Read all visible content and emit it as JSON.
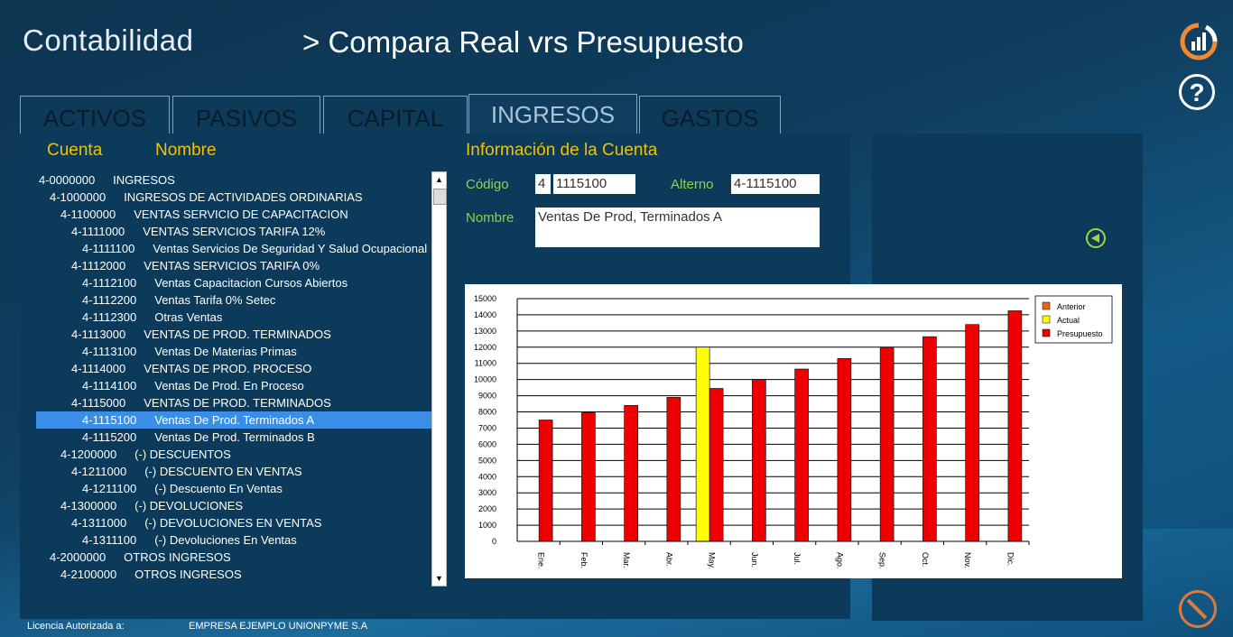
{
  "header": {
    "app_title": "Contabilidad",
    "page_title": "> Compara Real vrs Presupuesto"
  },
  "tabs": [
    {
      "label": "ACTIVOS"
    },
    {
      "label": "PASIVOS"
    },
    {
      "label": "CAPITAL"
    },
    {
      "label": "INGRESOS",
      "active": true
    },
    {
      "label": "GASTOS"
    }
  ],
  "tree": {
    "col_cuenta": "Cuenta",
    "col_nombre": "Nombre",
    "rows": [
      {
        "code": "4-0000000",
        "name": "INGRESOS",
        "level": 0
      },
      {
        "code": "4-1000000",
        "name": "INGRESOS DE ACTIVIDADES ORDINARIAS",
        "level": 1
      },
      {
        "code": "4-1100000",
        "name": "VENTAS SERVICIO DE CAPACITACION",
        "level": 2
      },
      {
        "code": "4-1111000",
        "name": "VENTAS  SERVICIOS TARIFA 12%",
        "level": 3
      },
      {
        "code": "4-1111100",
        "name": "Ventas Servicios De Seguridad Y Salud Ocupacional",
        "level": 4
      },
      {
        "code": "4-1112000",
        "name": "VENTAS SERVICIOS TARIFA 0%",
        "level": 3
      },
      {
        "code": "4-1112100",
        "name": "Ventas Capacitacion Cursos Abiertos",
        "level": 4
      },
      {
        "code": "4-1112200",
        "name": "Ventas Tarifa 0% Setec",
        "level": 4
      },
      {
        "code": "4-1112300",
        "name": "Otras Ventas",
        "level": 4
      },
      {
        "code": "4-1113000",
        "name": "VENTAS DE PROD. TERMINADOS",
        "level": 3
      },
      {
        "code": "4-1113100",
        "name": "Ventas De Materias Primas",
        "level": 4
      },
      {
        "code": "4-1114000",
        "name": "VENTAS DE PROD. PROCESO",
        "level": 3
      },
      {
        "code": "4-1114100",
        "name": "Ventas De Prod. En Proceso",
        "level": 4
      },
      {
        "code": "4-1115000",
        "name": "VENTAS DE PROD. TERMINADOS",
        "level": 3
      },
      {
        "code": "4-1115100",
        "name": "Ventas De Prod. Terminados A",
        "level": 4,
        "selected": true
      },
      {
        "code": "4-1115200",
        "name": "Ventas De Prod. Terminados B",
        "level": 4
      },
      {
        "code": "4-1200000",
        "name": "(-) DESCUENTOS",
        "level": 2
      },
      {
        "code": "4-1211000",
        "name": "(-) DESCUENTO EN VENTAS",
        "level": 3
      },
      {
        "code": "4-1211100",
        "name": "(-) Descuento En Ventas",
        "level": 4
      },
      {
        "code": "4-1300000",
        "name": "(-) DEVOLUCIONES",
        "level": 2
      },
      {
        "code": "4-1311000",
        "name": "(-) DEVOLUCIONES EN VENTAS",
        "level": 3
      },
      {
        "code": "4-1311100",
        "name": "(-) Devoluciones En Ventas",
        "level": 4
      },
      {
        "code": "4-2000000",
        "name": "OTROS INGRESOS",
        "level": 1
      },
      {
        "code": "4-2100000",
        "name": "OTROS INGRESOS",
        "level": 2
      }
    ]
  },
  "info": {
    "title": "Información de la Cuenta",
    "codigo_label": "Código",
    "codigo_prefix": "4",
    "codigo_value": "1115100",
    "alterno_label": "Alterno",
    "alterno_value": "4-1115100",
    "nombre_label": "Nombre",
    "nombre_value": "Ventas De Prod, Terminados A"
  },
  "footer": {
    "license_label": "Licencia Autorizada a:",
    "company": "EMPRESA EJEMPLO UNIONPYME S.A"
  },
  "colors": {
    "anterior": "#e8641e",
    "actual": "#ffff00",
    "presupuesto": "#ee0000",
    "accent": "#f2c200",
    "label_green": "#8fd14f"
  },
  "icons": [
    "app-logo-icon",
    "help-icon",
    "back-arrow-icon",
    "cancel-icon"
  ],
  "chart_data": {
    "type": "bar",
    "categories": [
      "Ene.",
      "Feb.",
      "Mar.",
      "Abr.",
      "May.",
      "Jun.",
      "Jul.",
      "Ago.",
      "Sep.",
      "Oct.",
      "Nov.",
      "Dic."
    ],
    "ylim": [
      0,
      15000
    ],
    "yticks": [
      0,
      1000,
      2000,
      3000,
      4000,
      5000,
      6000,
      7000,
      8000,
      9000,
      10000,
      11000,
      12000,
      13000,
      14000,
      15000
    ],
    "legend_position": "top-right",
    "grid": true,
    "series": [
      {
        "name": "Anterior",
        "color": "#e8641e",
        "values": [
          null,
          null,
          null,
          null,
          null,
          null,
          null,
          null,
          null,
          null,
          null,
          null
        ]
      },
      {
        "name": "Actual",
        "color": "#ffff00",
        "values": [
          null,
          null,
          null,
          null,
          12000,
          null,
          null,
          null,
          null,
          null,
          null,
          null
        ]
      },
      {
        "name": "Presupuesto",
        "color": "#ee0000",
        "values": [
          7500,
          7950,
          8400,
          8900,
          9450,
          10000,
          10650,
          11300,
          11950,
          12650,
          13400,
          14250
        ]
      }
    ]
  }
}
